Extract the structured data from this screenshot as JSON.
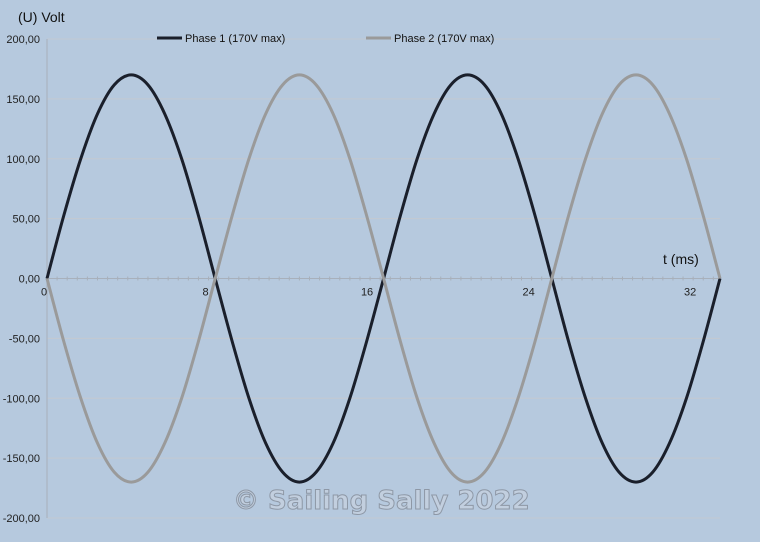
{
  "chart_data": {
    "type": "line",
    "title": "",
    "ylabel": "(U) Volt",
    "xlabel": "t (ms)",
    "xlim": [
      0,
      33.33
    ],
    "ylim": [
      -200,
      200
    ],
    "grid": "horizontal",
    "legend_placement": "top",
    "y_ticks": [
      "200,00",
      "150,00",
      "100,00",
      "50,00",
      "0,00",
      "-50,00",
      "-100,00",
      "-150,00",
      "-200,00"
    ],
    "y_tick_values": [
      200,
      150,
      100,
      50,
      0,
      -50,
      -100,
      -150,
      -200
    ],
    "x_ticks": [
      "0",
      "8",
      "16",
      "24",
      "32"
    ],
    "x_tick_values": [
      0,
      8,
      16,
      24,
      32
    ],
    "x": [
      0,
      0.83,
      1.67,
      2.5,
      3.33,
      4.17,
      5,
      5.83,
      6.67,
      7.5,
      8.33,
      9.17,
      10,
      10.83,
      11.67,
      12.5,
      13.33,
      14.17,
      15,
      15.83,
      16.67,
      17.5,
      18.33,
      19.17,
      20,
      20.83,
      21.67,
      22.5,
      23.33,
      24.17,
      25,
      25.83,
      26.67,
      27.5,
      28.33,
      29.17,
      30,
      30.83,
      31.67,
      32.5,
      33.33
    ],
    "series": [
      {
        "name": "Phase 1 (170V max)",
        "color": "#1a1f2b",
        "values": [
          0,
          52.5,
          99.9,
          137.5,
          161.7,
          170,
          161.7,
          137.5,
          99.9,
          52.5,
          0,
          -52.5,
          -99.9,
          -137.5,
          -161.7,
          -170,
          -161.7,
          -137.5,
          -99.9,
          -52.5,
          0,
          52.5,
          99.9,
          137.5,
          161.7,
          170,
          161.7,
          137.5,
          99.9,
          52.5,
          0,
          -52.5,
          -99.9,
          -137.5,
          -161.7,
          -170,
          -161.7,
          -137.5,
          -99.9,
          -52.5,
          0
        ]
      },
      {
        "name": "Phase 2 (170V max)",
        "color": "#9a9a9a",
        "values": [
          0,
          -52.5,
          -99.9,
          -137.5,
          -161.7,
          -170,
          -161.7,
          -137.5,
          -99.9,
          -52.5,
          0,
          52.5,
          99.9,
          137.5,
          161.7,
          170,
          161.7,
          137.5,
          99.9,
          52.5,
          0,
          -52.5,
          -99.9,
          -137.5,
          -161.7,
          -170,
          -161.7,
          -137.5,
          -99.9,
          -52.5,
          0,
          52.5,
          99.9,
          137.5,
          161.7,
          170,
          161.7,
          137.5,
          99.9,
          52.5,
          0
        ]
      }
    ],
    "watermark": "© Sailing Sally 2022"
  }
}
